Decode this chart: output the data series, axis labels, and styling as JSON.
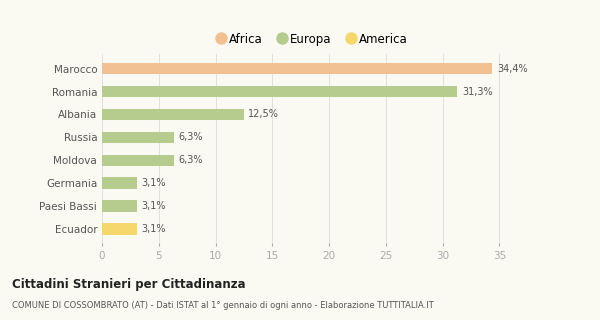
{
  "categories": [
    "Marocco",
    "Romania",
    "Albania",
    "Russia",
    "Moldova",
    "Germania",
    "Paesi Bassi",
    "Ecuador"
  ],
  "values": [
    34.4,
    31.3,
    12.5,
    6.3,
    6.3,
    3.1,
    3.1,
    3.1
  ],
  "labels": [
    "34,4%",
    "31,3%",
    "12,5%",
    "6,3%",
    "6,3%",
    "3,1%",
    "3,1%",
    "3,1%"
  ],
  "colors": [
    "#F2C193",
    "#B5CC8E",
    "#B5CC8E",
    "#B5CC8E",
    "#B5CC8E",
    "#B5CC8E",
    "#B5CC8E",
    "#F5D76E"
  ],
  "legend": [
    {
      "label": "Africa",
      "color": "#F2C193"
    },
    {
      "label": "Europa",
      "color": "#B5CC8E"
    },
    {
      "label": "America",
      "color": "#F5D76E"
    }
  ],
  "xlim": [
    0,
    37
  ],
  "xticks": [
    0,
    5,
    10,
    15,
    20,
    25,
    30,
    35
  ],
  "title": "Cittadini Stranieri per Cittadinanza",
  "subtitle": "COMUNE DI COSSOMBRATO (AT) - Dati ISTAT al 1° gennaio di ogni anno - Elaborazione TUTTITALIA.IT",
  "background_color": "#fafaf2",
  "bar_height": 0.5,
  "grid_color": "#dddddd",
  "label_fontsize": 7,
  "ytick_fontsize": 7.5,
  "xtick_fontsize": 7.5
}
